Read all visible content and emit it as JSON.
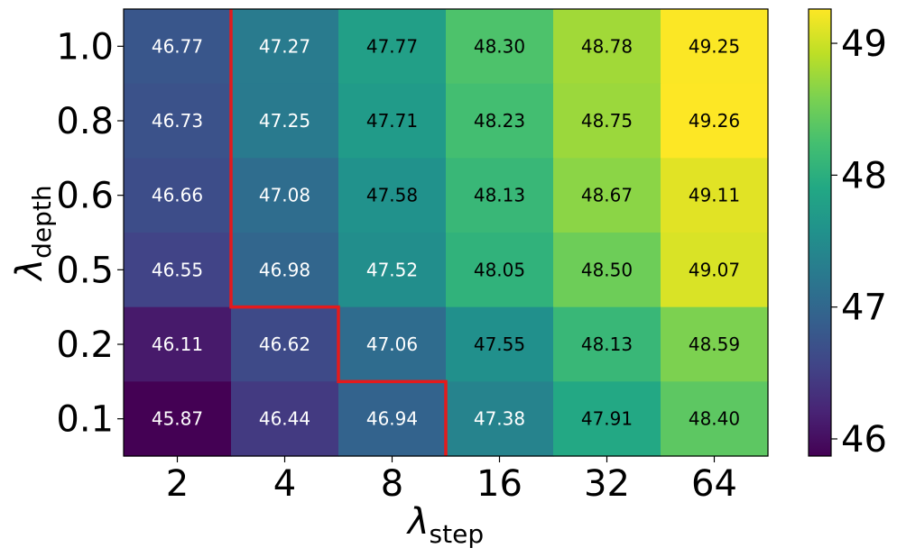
{
  "chart_data": {
    "type": "heatmap",
    "x": {
      "symbol": "λ",
      "subscript": "step",
      "categories": [
        "2",
        "4",
        "8",
        "16",
        "32",
        "64"
      ]
    },
    "y": {
      "symbol": "λ",
      "subscript": "depth",
      "categories": [
        "1.0",
        "0.8",
        "0.6",
        "0.5",
        "0.2",
        "0.1"
      ]
    },
    "values": [
      [
        46.77,
        47.27,
        47.77,
        48.3,
        48.78,
        49.25
      ],
      [
        46.73,
        47.25,
        47.71,
        48.23,
        48.75,
        49.26
      ],
      [
        46.66,
        47.08,
        47.58,
        48.13,
        48.67,
        49.11
      ],
      [
        46.55,
        46.98,
        47.52,
        48.05,
        48.5,
        49.07
      ],
      [
        46.11,
        46.62,
        47.06,
        47.55,
        48.13,
        48.59
      ],
      [
        45.87,
        46.44,
        46.94,
        47.38,
        47.91,
        48.4
      ]
    ],
    "colorscale": "viridis",
    "vmin": 45.87,
    "vmax": 49.26,
    "colorbar_ticks": [
      "46",
      "47",
      "48",
      "49"
    ],
    "frontier_color": "#e41a1c",
    "frontier_steps": [
      1,
      1,
      1,
      1,
      2,
      3
    ]
  }
}
